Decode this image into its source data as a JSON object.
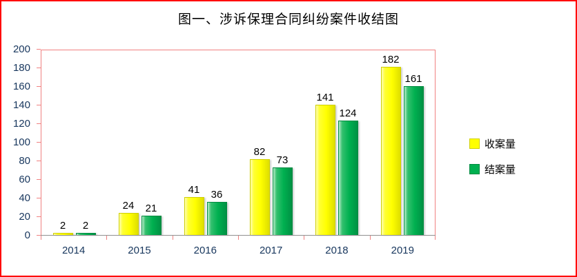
{
  "title": "图一、涉诉保理合同纠纷案件收结图",
  "chart_data": {
    "type": "bar",
    "categories": [
      "2014",
      "2015",
      "2016",
      "2017",
      "2018",
      "2019"
    ],
    "series": [
      {
        "name": "收案量",
        "color": "#FFFF00",
        "values": [
          2,
          24,
          41,
          82,
          141,
          182
        ]
      },
      {
        "name": "结案量",
        "color": "#00B050",
        "values": [
          2,
          21,
          36,
          73,
          124,
          161
        ]
      }
    ],
    "title": "图一、涉诉保理合同纠纷案件收结图",
    "xlabel": "",
    "ylabel": "",
    "ylim": [
      0,
      200
    ],
    "ytick_step": 20,
    "grid": false,
    "legend_position": "right",
    "value_labels_shown": true
  },
  "colors": {
    "outer_border": "#FF0000",
    "plot_border": "#F08080",
    "axis_text": "#17365D",
    "value_label": "#000000",
    "series_yellow": "#FFFF00",
    "series_green": "#00B050"
  }
}
